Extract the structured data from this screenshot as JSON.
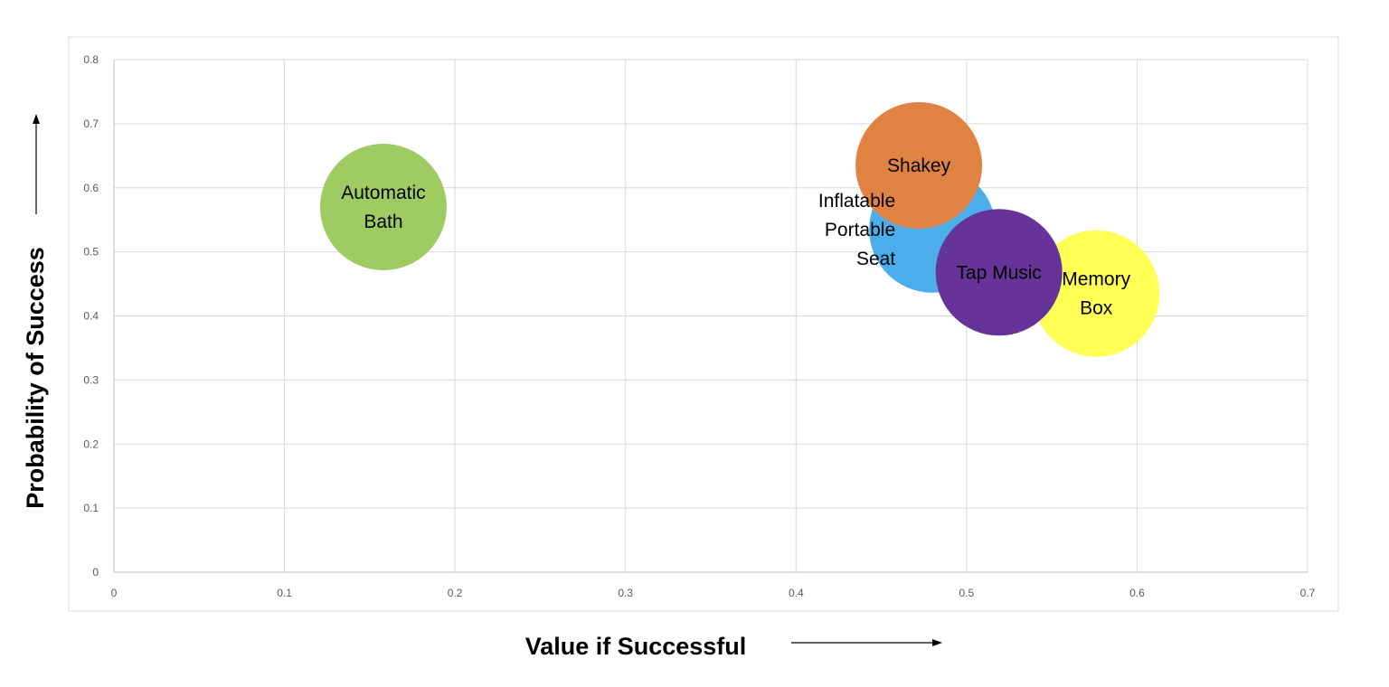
{
  "chart_data": {
    "type": "bubble",
    "xlabel": "Value if Successful",
    "ylabel": "Probability of Success",
    "xlim": [
      0,
      0.7
    ],
    "ylim": [
      0,
      0.8
    ],
    "x_ticks": [
      "0",
      "0.1",
      "0.2",
      "0.3",
      "0.4",
      "0.5",
      "0.6",
      "0.7"
    ],
    "y_ticks": [
      "0",
      "0.1",
      "0.2",
      "0.3",
      "0.4",
      "0.5",
      "0.6",
      "0.7",
      "0.8"
    ],
    "grid": true,
    "bubble_size_units": "relative",
    "series": [
      {
        "name": "Automatic Bath",
        "label_lines": [
          "Automatic",
          "Bath"
        ],
        "x": 0.158,
        "y": 0.57,
        "size": 1,
        "color": "#9ECC63",
        "label_position": "center"
      },
      {
        "name": "Inflatable Portable Seat",
        "label_lines": [
          "Inflatable",
          "Portable",
          "Seat"
        ],
        "x": 0.48,
        "y": 0.535,
        "size": 1,
        "color": "#4BAEEA",
        "label_position": "left"
      },
      {
        "name": "Memory Box",
        "label_lines": [
          "Memory",
          "Box"
        ],
        "x": 0.576,
        "y": 0.435,
        "size": 1,
        "color": "#FFFF55",
        "label_position": "center"
      },
      {
        "name": "Tap Music",
        "label_lines": [
          "Tap Music"
        ],
        "x": 0.519,
        "y": 0.468,
        "size": 1,
        "color": "#663399",
        "label_position": "center"
      },
      {
        "name": "Shakey",
        "label_lines": [
          "Shakey"
        ],
        "x": 0.472,
        "y": 0.635,
        "size": 1,
        "color": "#E08242",
        "label_position": "center"
      }
    ]
  }
}
